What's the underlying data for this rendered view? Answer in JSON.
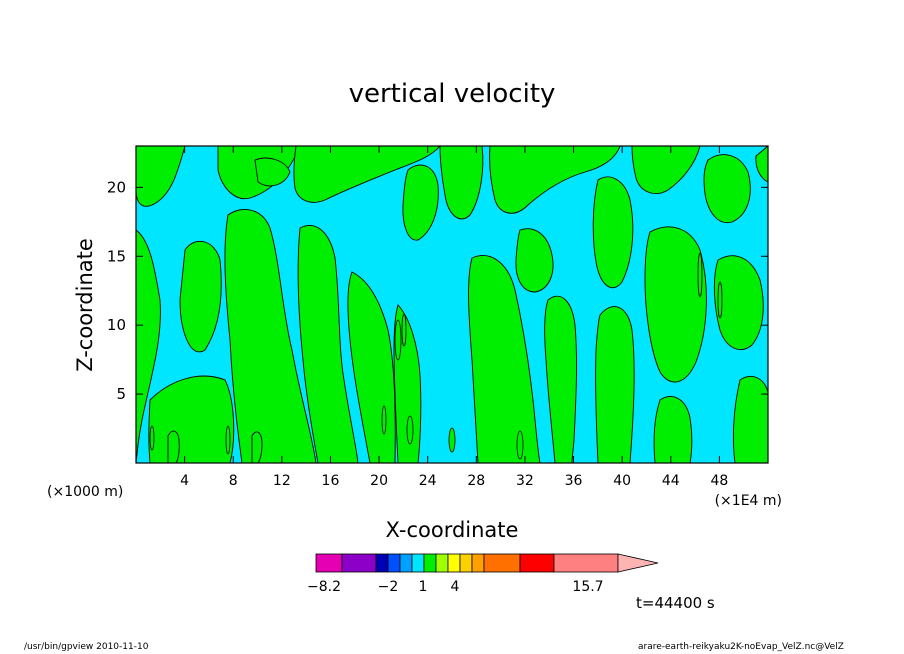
{
  "footer": {
    "left": "/usr/bin/gpview   2010-11-10",
    "right": "arare-earth-reikyaku2K-noEvap_VelZ.nc@VelZ"
  },
  "time_label": "t=44400 s",
  "chart_data": {
    "type": "contour",
    "title": "vertical velocity",
    "xlabel": "X-coordinate",
    "ylabel": "Z-coordinate",
    "x_unit_left": "(×1000 m)",
    "x_unit_right": "(×1E4 m)",
    "xlim": [
      0,
      52
    ],
    "ylim": [
      0,
      23
    ],
    "xticks": [
      4,
      8,
      12,
      16,
      20,
      24,
      28,
      32,
      36,
      40,
      44,
      48
    ],
    "yticks": [
      5,
      10,
      15,
      20
    ],
    "colors": {
      "positive": "#00ee00",
      "negative": "#00e6ff",
      "line": "#000000"
    },
    "colorbar": {
      "colors": [
        "#e600b4",
        "#8c00c8",
        "#0000b4",
        "#0050ff",
        "#00a0ff",
        "#00e6ff",
        "#00ee00",
        "#a0ff00",
        "#ffff00",
        "#ffd000",
        "#ffa000",
        "#ff7000",
        "#ff0000",
        "#ff8080",
        "#ffb4b4"
      ],
      "labels": [
        "-8.2",
        "-2",
        "1",
        "4",
        "15.7"
      ]
    }
  }
}
